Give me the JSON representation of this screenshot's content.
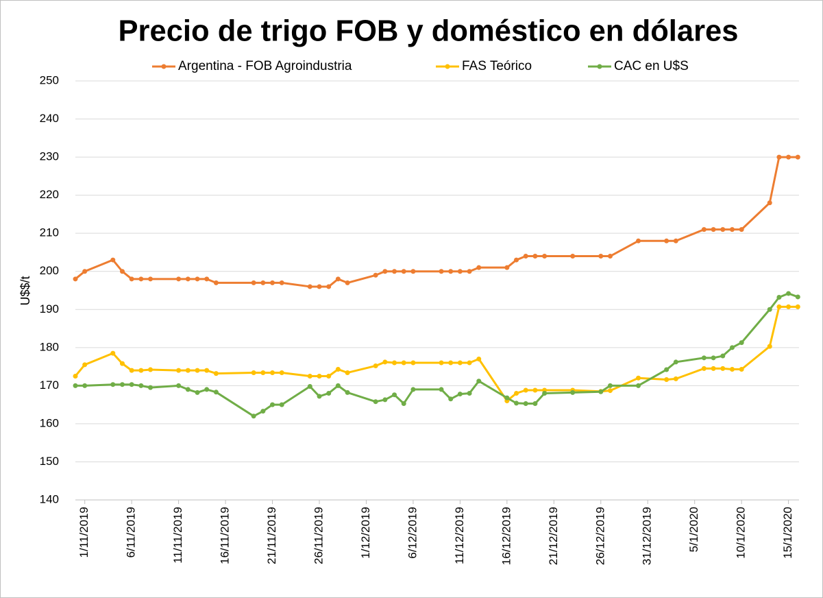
{
  "chart_data": {
    "type": "line",
    "title": "Precio de trigo FOB y doméstico en dólares",
    "y_label": "U$$/t",
    "x": [
      "2019-10-31",
      "2019-11-01",
      "2019-11-04",
      "2019-11-05",
      "2019-11-06",
      "2019-11-07",
      "2019-11-08",
      "2019-11-11",
      "2019-11-12",
      "2019-11-13",
      "2019-11-14",
      "2019-11-15",
      "2019-11-19",
      "2019-11-20",
      "2019-11-21",
      "2019-11-22",
      "2019-11-25",
      "2019-11-26",
      "2019-11-27",
      "2019-11-28",
      "2019-11-29",
      "2019-12-02",
      "2019-12-03",
      "2019-12-04",
      "2019-12-05",
      "2019-12-06",
      "2019-12-09",
      "2019-12-10",
      "2019-12-11",
      "2019-12-12",
      "2019-12-13",
      "2019-12-16",
      "2019-12-17",
      "2019-12-18",
      "2019-12-19",
      "2019-12-20",
      "2019-12-23",
      "2019-12-26",
      "2019-12-27",
      "2019-12-30",
      "2020-01-02",
      "2020-01-03",
      "2020-01-06",
      "2020-01-07",
      "2020-01-08",
      "2020-01-09",
      "2020-01-10",
      "2020-01-13",
      "2020-01-14",
      "2020-01-15",
      "2020-01-16"
    ],
    "series": [
      {
        "name": "Argentina - FOB Agroindustria",
        "color": "#ed7d31",
        "values": [
          198,
          200,
          203,
          200,
          198,
          198,
          198,
          198,
          198,
          198,
          198,
          197,
          197,
          197,
          197,
          197,
          196,
          196,
          196,
          198,
          197,
          199,
          200,
          200,
          200,
          200,
          200,
          200,
          200,
          200,
          201,
          201,
          203,
          204,
          204,
          204,
          204,
          204,
          204,
          208,
          208,
          208,
          211,
          211,
          211,
          211,
          211,
          218,
          230,
          230,
          230
        ]
      },
      {
        "name": "FAS Teórico",
        "color": "#ffc000",
        "values": [
          172.5,
          175.5,
          178.5,
          175.8,
          174,
          174,
          174.2,
          174,
          174,
          174,
          174,
          173.2,
          173.4,
          173.4,
          173.4,
          173.4,
          172.5,
          172.5,
          172.5,
          174.3,
          173.4,
          175.2,
          176.2,
          176,
          176,
          176,
          176,
          176,
          176,
          176,
          177,
          166,
          168,
          168.8,
          168.8,
          168.8,
          168.8,
          168.5,
          168.7,
          172,
          171.6,
          171.8,
          174.5,
          174.5,
          174.5,
          174.3,
          174.3,
          180.3,
          190.7,
          190.7,
          190.7
        ]
      },
      {
        "name": "CAC en U$S",
        "color": "#70ad47",
        "values": [
          170,
          170,
          170.3,
          170.3,
          170.3,
          170,
          169.5,
          170,
          169,
          168.2,
          169,
          168.3,
          162,
          163.3,
          165,
          165,
          169.8,
          167.2,
          168,
          170,
          168.2,
          165.8,
          166.3,
          167.6,
          165.3,
          169,
          169,
          166.5,
          167.8,
          168,
          171.2,
          166.8,
          165.4,
          165.3,
          165.3,
          168,
          168.2,
          168.4,
          170,
          170,
          174.2,
          176.2,
          177.3,
          177.3,
          177.8,
          180,
          181.3,
          190,
          193.2,
          194.2,
          193.3
        ]
      }
    ],
    "xlim": [
      "2019-10-31",
      "2020-01-17"
    ],
    "xticks": [
      {
        "value": "2019-11-01",
        "label": "1/11/2019"
      },
      {
        "value": "2019-11-06",
        "label": "6/11/2019"
      },
      {
        "value": "2019-11-11",
        "label": "11/11/2019"
      },
      {
        "value": "2019-11-16",
        "label": "16/11/2019"
      },
      {
        "value": "2019-11-21",
        "label": "21/11/2019"
      },
      {
        "value": "2019-11-26",
        "label": "26/11/2019"
      },
      {
        "value": "2019-12-01",
        "label": "1/12/2019"
      },
      {
        "value": "2019-12-06",
        "label": "6/12/2019"
      },
      {
        "value": "2019-12-11",
        "label": "11/12/2019"
      },
      {
        "value": "2019-12-16",
        "label": "16/12/2019"
      },
      {
        "value": "2019-12-21",
        "label": "21/12/2019"
      },
      {
        "value": "2019-12-26",
        "label": "26/12/2019"
      },
      {
        "value": "2019-12-31",
        "label": "31/12/2019"
      },
      {
        "value": "2020-01-05",
        "label": "5/1/2020"
      },
      {
        "value": "2020-01-10",
        "label": "10/1/2020"
      },
      {
        "value": "2020-01-15",
        "label": "15/1/2020"
      }
    ],
    "ylim": [
      140,
      250
    ],
    "yticks": [
      140,
      150,
      160,
      170,
      180,
      190,
      200,
      210,
      220,
      230,
      240,
      250
    ],
    "grid": true,
    "legend": "top",
    "markers": true
  }
}
